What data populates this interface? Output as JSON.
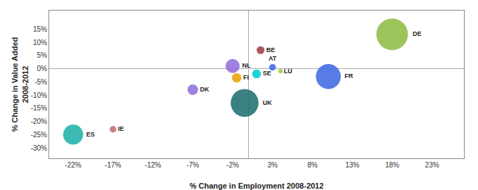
{
  "chart_data": {
    "type": "scatter",
    "x": [
      -22,
      -17,
      -7,
      -2,
      -1.5,
      -0.5,
      1,
      1.5,
      3,
      4,
      10,
      18
    ],
    "values": [
      -25,
      -23,
      -8,
      1,
      -3.5,
      -13,
      -2,
      7,
      0.5,
      -1,
      -3,
      13
    ],
    "sizes": [
      1800,
      200,
      500,
      900,
      400,
      3500,
      350,
      280,
      200,
      80,
      2800,
      4500
    ],
    "labels": [
      "ES",
      "IE",
      "DK",
      "NL",
      "FI",
      "UK",
      "SE",
      "BE",
      "AT",
      "LU",
      "FR",
      "DE"
    ],
    "colors": [
      "#20B2AA",
      "#C07070",
      "#9370DB",
      "#9370DB",
      "#E8A000",
      "#207070",
      "#00CED1",
      "#A04040",
      "#4169E1",
      "#9ACD32",
      "#4169E1",
      "#8FBC44"
    ],
    "xlabel": "% Change in Employment 2008-2012",
    "ylabel": "% Change in Value Added\n2008-2012",
    "xlim": [
      -25,
      27
    ],
    "ylim": [
      -34,
      22
    ],
    "xticks": [
      {
        "value": -22,
        "label": "-22%"
      },
      {
        "value": -17,
        "label": "-17%"
      },
      {
        "value": -12,
        "label": "-12%"
      },
      {
        "value": -7,
        "label": "-7%"
      },
      {
        "value": -2,
        "label": "-2%"
      },
      {
        "value": 3,
        "label": "3%"
      },
      {
        "value": 8,
        "label": "8%"
      },
      {
        "value": 13,
        "label": "13%"
      },
      {
        "value": 18,
        "label": "18%"
      },
      {
        "value": 23,
        "label": "23%"
      }
    ],
    "yticks": [
      {
        "value": -30,
        "label": "-30%"
      },
      {
        "value": -25,
        "label": "-25%"
      },
      {
        "value": -20,
        "label": "-20%"
      },
      {
        "value": -15,
        "label": "-15%"
      },
      {
        "value": -10,
        "label": "-10%"
      },
      {
        "value": -5,
        "label": "-5%"
      },
      {
        "value": 0,
        "label": "0%"
      },
      {
        "value": 5,
        "label": "5%"
      },
      {
        "value": 10,
        "label": "10%"
      },
      {
        "value": 15,
        "label": "15%"
      }
    ],
    "grid": false
  }
}
